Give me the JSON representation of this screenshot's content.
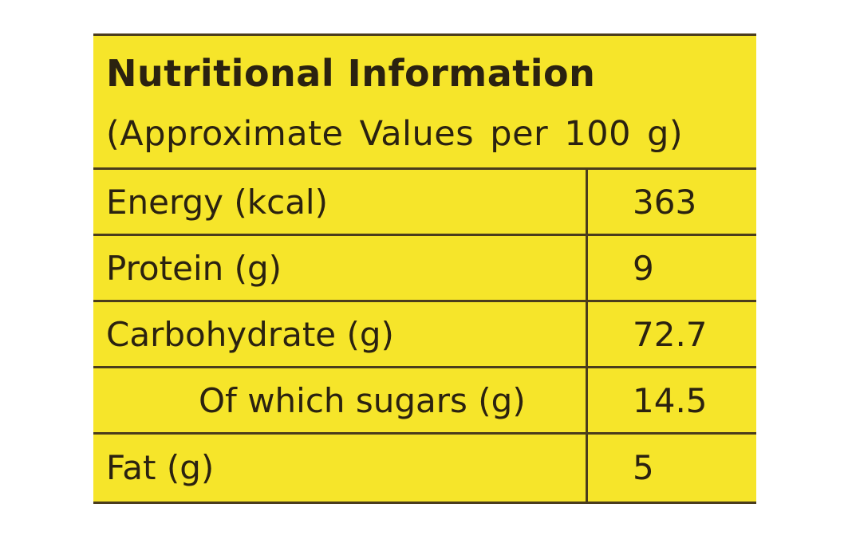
{
  "nutrition": {
    "title": "Nutritional Information",
    "subtitle": "(Approximate Values per 100 g)",
    "rows": [
      {
        "label": "Energy (kcal)",
        "value": "363"
      },
      {
        "label": "Protein (g)",
        "value": "9"
      },
      {
        "label": "Carbohydrate (g)",
        "value": "72.7"
      },
      {
        "label": "Of which sugars (g)",
        "value": "14.5"
      },
      {
        "label": "Fat (g)",
        "value": "5"
      }
    ]
  },
  "colors": {
    "background": "#f6e52a",
    "text": "#2b2210",
    "rule": "#4a3c1c"
  }
}
